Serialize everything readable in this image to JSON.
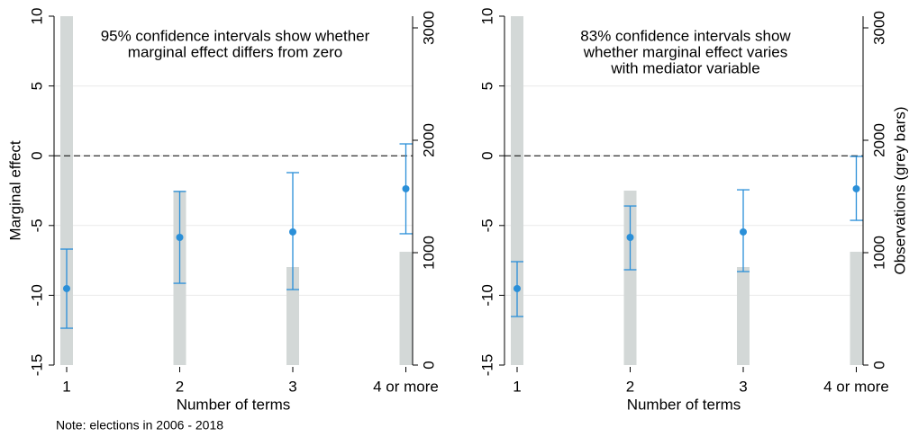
{
  "chart_data": [
    {
      "type": "errorbar",
      "annotation": [
        "95% confidence intervals show whether",
        "marginal effect differs from zero"
      ],
      "xlabel": "Number of terms",
      "ylabel": "Marginal effect",
      "categories": [
        "1",
        "2",
        "3",
        "4 or more"
      ],
      "ylim": [
        -15,
        10
      ],
      "yticks": [
        -15,
        -10,
        -5,
        0,
        5,
        10
      ],
      "y2lim": [
        0,
        3104
      ],
      "y2ticks": [
        0,
        1000,
        2000,
        3000
      ],
      "hline": 0,
      "grid": true,
      "series": [
        {
          "type": "bar",
          "axis": "y2",
          "color": "#d3d8d7",
          "values": [
            3104,
            1552,
            872,
            1008
          ]
        },
        {
          "type": "errorbar",
          "color": "#2a8fd8",
          "values": [
            -9.52,
            -5.85,
            -5.46,
            -2.37
          ],
          "lower": [
            -12.36,
            -9.14,
            -9.59,
            -5.59
          ],
          "upper": [
            -6.69,
            -2.56,
            -1.21,
            0.85
          ]
        }
      ]
    },
    {
      "type": "errorbar",
      "annotation": [
        "83% confidence intervals show",
        "whether marginal effect varies",
        "with mediator variable"
      ],
      "xlabel": "Number of terms",
      "y2label": "Observations (grey bars)",
      "categories": [
        "1",
        "2",
        "3",
        "4 or more"
      ],
      "ylim": [
        -15,
        10
      ],
      "yticks": [
        -15,
        -10,
        -5,
        0,
        5,
        10
      ],
      "y2lim": [
        0,
        3104
      ],
      "y2ticks": [
        0,
        1000,
        2000,
        3000
      ],
      "hline": 0,
      "grid": true,
      "series": [
        {
          "type": "bar",
          "axis": "y2",
          "color": "#d3d8d7",
          "values": [
            3104,
            1552,
            872,
            1008
          ]
        },
        {
          "type": "errorbar",
          "color": "#2a8fd8",
          "values": [
            -9.52,
            -5.85,
            -5.46,
            -2.37
          ],
          "lower": [
            -11.52,
            -8.17,
            -8.3,
            -4.63
          ],
          "upper": [
            -7.59,
            -3.6,
            -2.44,
            -0.05
          ]
        }
      ]
    }
  ],
  "note": "Note: elections in 2006 - 2018"
}
